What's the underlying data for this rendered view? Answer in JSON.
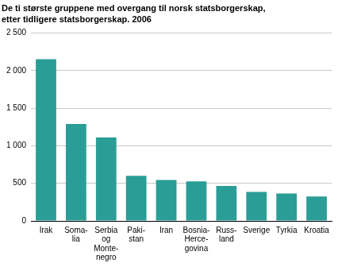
{
  "chart_data": {
    "type": "bar",
    "title": [
      "De ti største gruppene med overgang til norsk statsborgerskap,",
      "etter tidligere statsborgerskap. 2006"
    ],
    "categories": [
      [
        "Irak"
      ],
      [
        "Soma-",
        "lia"
      ],
      [
        "Serbia",
        "og",
        "Monte-",
        "negro"
      ],
      [
        "Paki-",
        "stan"
      ],
      [
        "Iran"
      ],
      [
        "Bosnia-",
        "Herce-",
        "govina"
      ],
      [
        "Russ-",
        "land"
      ],
      [
        "Sverige"
      ],
      [
        "Tyrkia"
      ],
      [
        "Kroatia"
      ]
    ],
    "values": [
      2150,
      1290,
      1110,
      600,
      545,
      525,
      465,
      385,
      365,
      325
    ],
    "color": "#2a9d96",
    "ylim": [
      0,
      2500
    ],
    "yticks": [
      0,
      500,
      {
        "value": 1000,
        "label": "1 000"
      },
      {
        "value": 1500,
        "label": "1 500"
      },
      {
        "value": 2000,
        "label": "2 000"
      },
      {
        "value": 2500,
        "label": "2 500"
      }
    ],
    "grid": true
  }
}
